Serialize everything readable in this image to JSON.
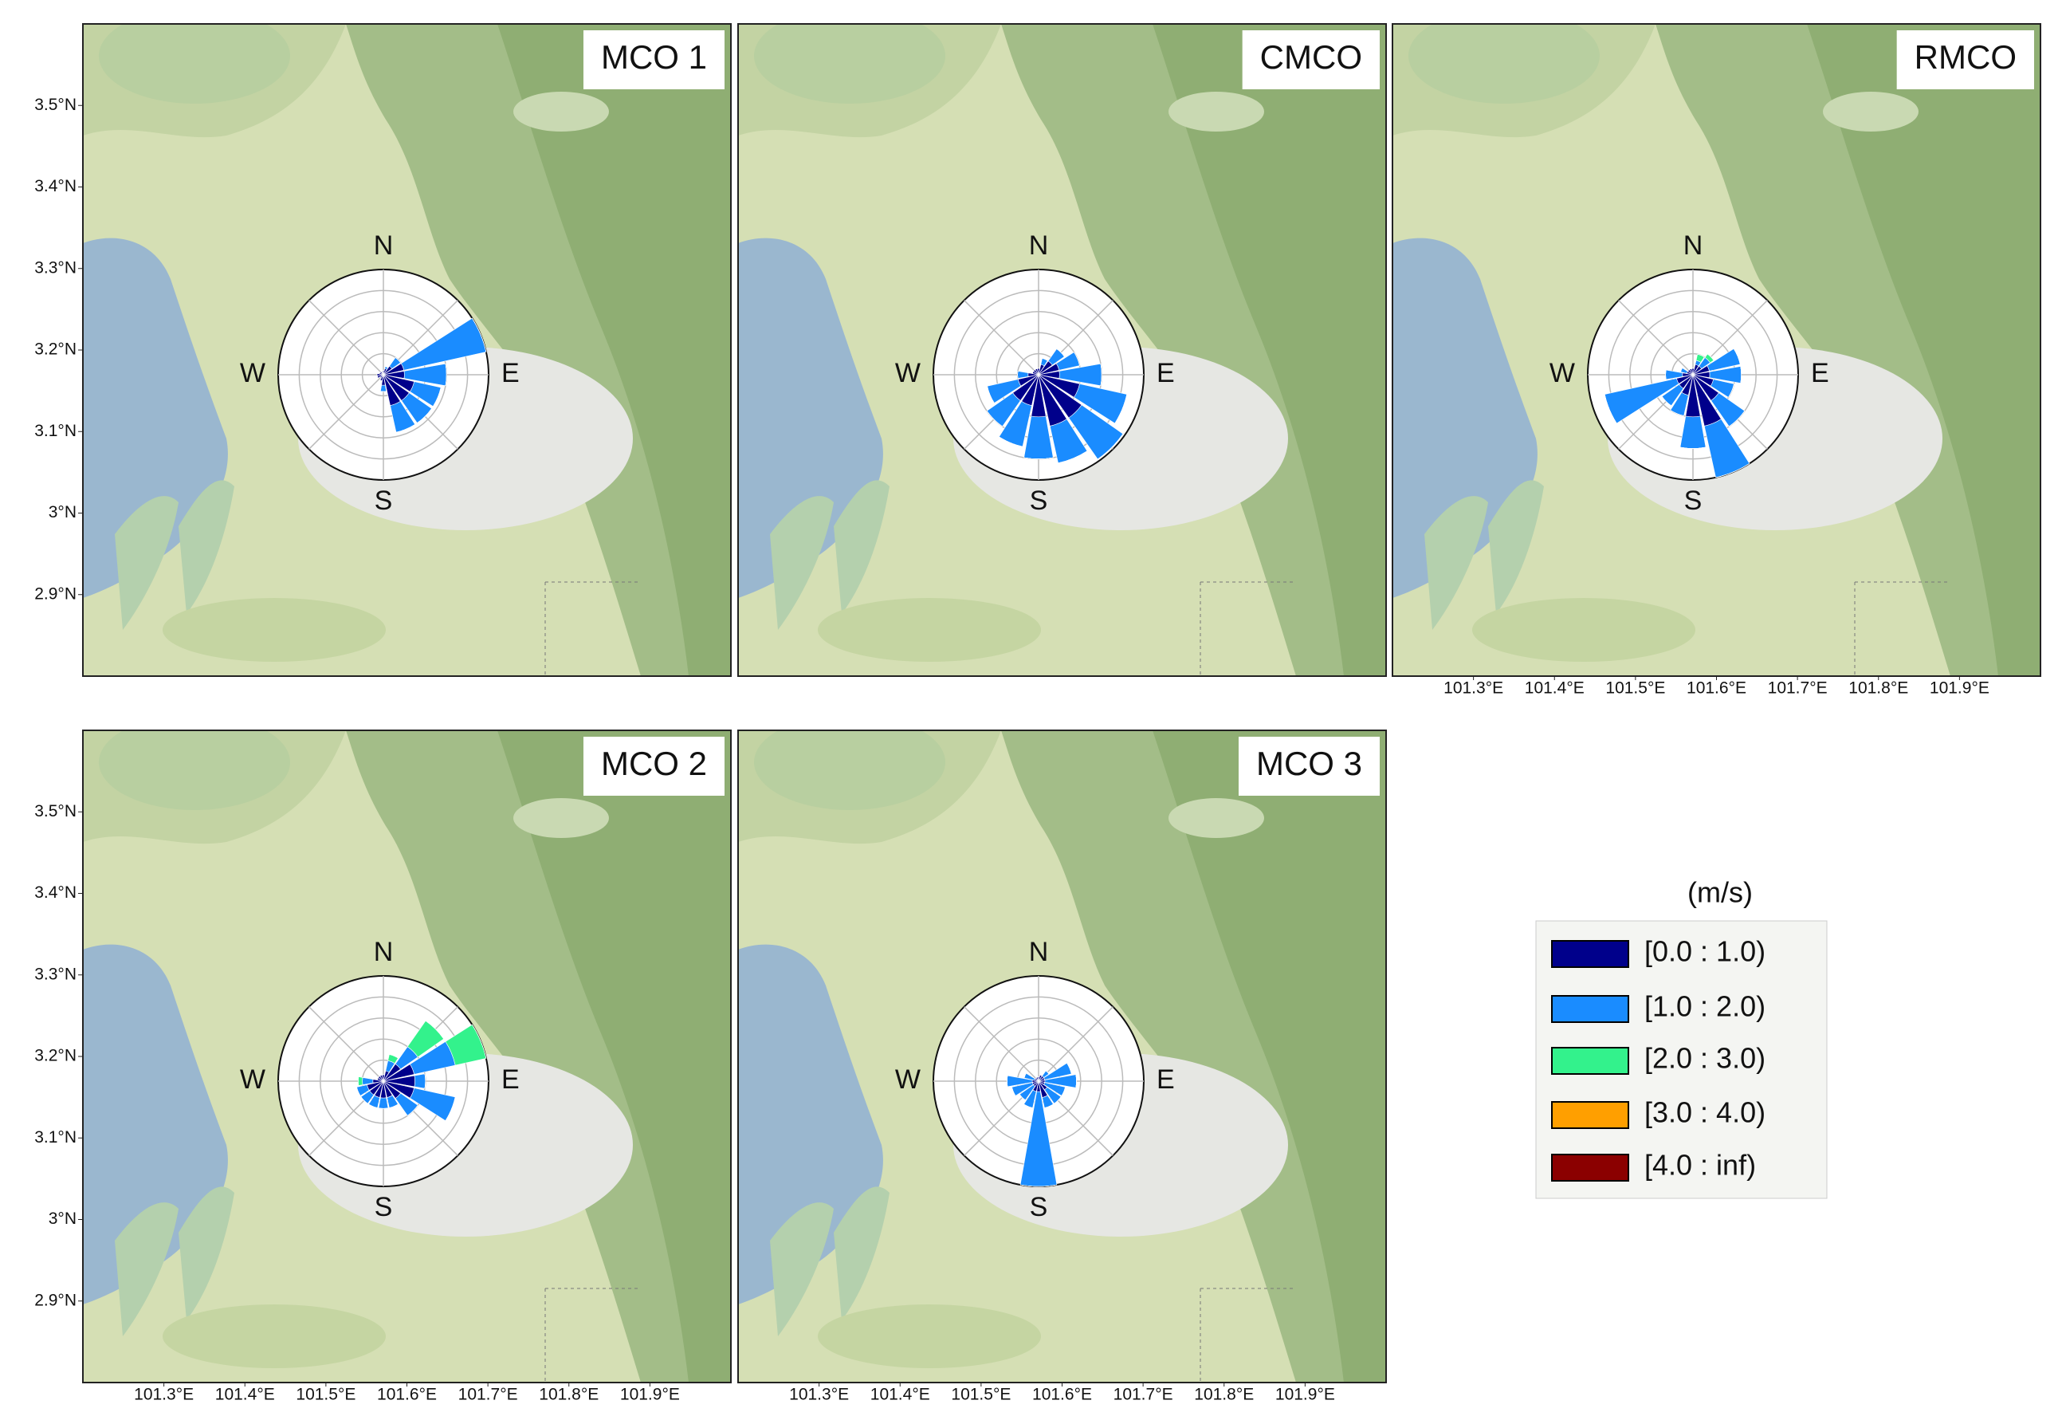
{
  "chart_data": [
    {
      "type": "windrose",
      "title": "MCO 1",
      "xlim": [
        101.2,
        102.0
      ],
      "ylim": [
        2.8,
        3.6
      ],
      "yticks": [
        {
          "value": 2.9,
          "label": "2.9°N"
        },
        {
          "value": 3.0,
          "label": "3°N"
        },
        {
          "value": 3.1,
          "label": "3.1°N"
        },
        {
          "value": 3.2,
          "label": "3.2°N"
        },
        {
          "value": 3.3,
          "label": "3.3°N"
        },
        {
          "value": 3.4,
          "label": "3.4°N"
        },
        {
          "value": 3.5,
          "label": "3.5°N"
        }
      ],
      "compass": [
        "N",
        "E",
        "S",
        "W"
      ],
      "directions": [
        0,
        22.5,
        45,
        67.5,
        90,
        112.5,
        135,
        157.5,
        180,
        202.5,
        225,
        247.5,
        270,
        292.5,
        315,
        337.5
      ],
      "rlim": [
        0,
        5
      ],
      "rticks": [
        1,
        2,
        3,
        4
      ],
      "series": [
        {
          "values": [
            0.2,
            0.3,
            0.5,
            1.0,
            1.0,
            1.5,
            1.5,
            1.5,
            0.5,
            0.3,
            0.2,
            0.3,
            0.3,
            0.2,
            0.2,
            0.1
          ]
        },
        {
          "values": [
            0,
            0.1,
            0.5,
            4.0,
            2.0,
            1.3,
            1.3,
            1.3,
            0.3,
            0,
            0,
            0,
            0,
            0,
            0,
            0
          ]
        },
        {
          "values": [
            0,
            0,
            0,
            0,
            0,
            0,
            0,
            0,
            0,
            0,
            0,
            0,
            0,
            0,
            0,
            0
          ]
        },
        {
          "values": [
            0,
            0,
            0,
            0,
            0,
            0,
            0,
            0,
            0,
            0,
            0,
            0,
            0,
            0,
            0,
            0
          ]
        },
        {
          "values": [
            0,
            0,
            0,
            0,
            0,
            0,
            0,
            0,
            0,
            0,
            0,
            0,
            0,
            0,
            0,
            0
          ]
        }
      ]
    },
    {
      "type": "windrose",
      "title": "CMCO",
      "xlim": [
        101.2,
        102.0
      ],
      "ylim": [
        2.8,
        3.6
      ],
      "compass": [
        "N",
        "E",
        "S",
        "W"
      ],
      "directions": [
        0,
        22.5,
        45,
        67.5,
        90,
        112.5,
        135,
        157.5,
        180,
        202.5,
        225,
        247.5,
        270,
        292.5,
        315,
        337.5
      ],
      "rlim": [
        0,
        5
      ],
      "rticks": [
        1,
        2,
        3,
        4
      ],
      "series": [
        {
          "values": [
            0.3,
            0.5,
            0.8,
            1.0,
            1.0,
            2.0,
            2.5,
            2.5,
            2.0,
            1.5,
            1.5,
            1.0,
            0.5,
            0.3,
            0.3,
            0.3
          ]
        },
        {
          "values": [
            0,
            0.3,
            0.7,
            1.0,
            2.0,
            2.3,
            2.4,
            1.8,
            2.0,
            2.0,
            1.5,
            1.5,
            0.5,
            0,
            0,
            0
          ]
        },
        {
          "values": [
            0,
            0,
            0,
            0,
            0,
            0,
            0,
            0,
            0,
            0,
            0,
            0,
            0,
            0,
            0,
            0
          ]
        },
        {
          "values": [
            0,
            0,
            0,
            0,
            0,
            0,
            0,
            0,
            0,
            0,
            0,
            0,
            0,
            0,
            0,
            0
          ]
        },
        {
          "values": [
            0,
            0,
            0,
            0,
            0,
            0,
            0,
            0,
            0,
            0,
            0,
            0,
            0,
            0,
            0,
            0
          ]
        }
      ]
    },
    {
      "type": "windrose",
      "title": "RMCO",
      "xlim": [
        101.2,
        102.0
      ],
      "ylim": [
        2.8,
        3.6
      ],
      "xticks": [
        {
          "value": 101.3,
          "label": "101.3°E"
        },
        {
          "value": 101.4,
          "label": "101.4°E"
        },
        {
          "value": 101.5,
          "label": "101.5°E"
        },
        {
          "value": 101.6,
          "label": "101.6°E"
        },
        {
          "value": 101.7,
          "label": "101.7°E"
        },
        {
          "value": 101.8,
          "label": "101.8°E"
        },
        {
          "value": 101.9,
          "label": "101.9°E"
        }
      ],
      "compass": [
        "N",
        "E",
        "S",
        "W"
      ],
      "directions": [
        0,
        22.5,
        45,
        67.5,
        90,
        112.5,
        135,
        157.5,
        180,
        202.5,
        225,
        247.5,
        270,
        292.5,
        315,
        337.5
      ],
      "rlim": [
        0,
        5
      ],
      "rticks": [
        1,
        2,
        3,
        4
      ],
      "series": [
        {
          "values": [
            0.3,
            0.5,
            0.5,
            0.8,
            0.8,
            1.0,
            1.5,
            2.5,
            2.0,
            1.0,
            0.8,
            0.8,
            0.5,
            0.3,
            0.3,
            0.3
          ]
        },
        {
          "values": [
            0,
            0.2,
            0.5,
            1.5,
            1.5,
            1.0,
            1.5,
            2.5,
            1.5,
            1.0,
            1.0,
            3.5,
            0.8,
            0.3,
            0,
            0
          ]
        },
        {
          "values": [
            0,
            0.3,
            0.2,
            0,
            0,
            0,
            0,
            0,
            0,
            0,
            0,
            0,
            0,
            0,
            0,
            0
          ]
        },
        {
          "values": [
            0,
            0,
            0,
            0,
            0,
            0,
            0,
            0,
            0,
            0,
            0,
            0,
            0,
            0,
            0,
            0
          ]
        },
        {
          "values": [
            0,
            0,
            0,
            0,
            0,
            0,
            0,
            0,
            0,
            0,
            0,
            0,
            0,
            0,
            0,
            0
          ]
        }
      ]
    },
    {
      "type": "windrose",
      "title": "MCO 2",
      "xlim": [
        101.2,
        102.0
      ],
      "ylim": [
        2.8,
        3.6
      ],
      "xticks": [
        {
          "value": 101.3,
          "label": "101.3°E"
        },
        {
          "value": 101.4,
          "label": "101.4°E"
        },
        {
          "value": 101.5,
          "label": "101.5°E"
        },
        {
          "value": 101.6,
          "label": "101.6°E"
        },
        {
          "value": 101.7,
          "label": "101.7°E"
        },
        {
          "value": 101.8,
          "label": "101.8°E"
        },
        {
          "value": 101.9,
          "label": "101.9°E"
        }
      ],
      "yticks": [
        {
          "value": 2.9,
          "label": "2.9°N"
        },
        {
          "value": 3.0,
          "label": "3°N"
        },
        {
          "value": 3.1,
          "label": "3.1°N"
        },
        {
          "value": 3.2,
          "label": "3.2°N"
        },
        {
          "value": 3.3,
          "label": "3.3°N"
        },
        {
          "value": 3.4,
          "label": "3.4°N"
        },
        {
          "value": 3.5,
          "label": "3.5°N"
        }
      ],
      "compass": [
        "N",
        "E",
        "S",
        "W"
      ],
      "directions": [
        0,
        22.5,
        45,
        67.5,
        90,
        112.5,
        135,
        157.5,
        180,
        202.5,
        225,
        247.5,
        270,
        292.5,
        315,
        337.5
      ],
      "rlim": [
        0,
        5
      ],
      "rticks": [
        1,
        2,
        3,
        4
      ],
      "series": [
        {
          "values": [
            0.3,
            0.5,
            1.0,
            1.5,
            1.5,
            1.5,
            1.0,
            0.8,
            0.8,
            0.8,
            0.8,
            0.8,
            0.5,
            0.3,
            0.3,
            0.3
          ]
        },
        {
          "values": [
            0,
            0.5,
            1.0,
            2.0,
            0.5,
            2.0,
            1.0,
            0.5,
            0.5,
            0.5,
            0.5,
            0.5,
            0.5,
            0,
            0,
            0
          ]
        },
        {
          "values": [
            0,
            0.3,
            1.5,
            1.5,
            0,
            0,
            0,
            0,
            0,
            0,
            0,
            0,
            0.2,
            0,
            0,
            0
          ]
        },
        {
          "values": [
            0,
            0,
            0,
            0,
            0,
            0,
            0,
            0,
            0,
            0,
            0,
            0,
            0,
            0,
            0,
            0
          ]
        },
        {
          "values": [
            0,
            0,
            0,
            0,
            0,
            0,
            0,
            0,
            0,
            0,
            0,
            0,
            0,
            0,
            0,
            0
          ]
        }
      ]
    },
    {
      "type": "windrose",
      "title": "MCO 3",
      "xlim": [
        101.2,
        102.0
      ],
      "ylim": [
        2.8,
        3.6
      ],
      "xticks": [
        {
          "value": 101.3,
          "label": "101.3°E"
        },
        {
          "value": 101.4,
          "label": "101.4°E"
        },
        {
          "value": 101.5,
          "label": "101.5°E"
        },
        {
          "value": 101.6,
          "label": "101.6°E"
        },
        {
          "value": 101.7,
          "label": "101.7°E"
        },
        {
          "value": 101.8,
          "label": "101.8°E"
        },
        {
          "value": 101.9,
          "label": "101.9°E"
        }
      ],
      "compass": [
        "N",
        "E",
        "S",
        "W"
      ],
      "directions": [
        0,
        22.5,
        45,
        67.5,
        90,
        112.5,
        135,
        157.5,
        180,
        202.5,
        225,
        247.5,
        270,
        292.5,
        315,
        337.5
      ],
      "rlim": [
        0,
        5
      ],
      "rticks": [
        1,
        2,
        3,
        4
      ],
      "series": [
        {
          "values": [
            0.2,
            0.3,
            0.3,
            0.3,
            0.3,
            0.3,
            0.5,
            0.8,
            0.5,
            0.5,
            0.3,
            0.3,
            0.3,
            0.2,
            0.2,
            0.2
          ]
        },
        {
          "values": [
            0,
            0,
            0.3,
            1.3,
            1.5,
            1.0,
            0.8,
            0.5,
            4.5,
            0.8,
            0.8,
            1.0,
            1.2,
            0.5,
            0,
            0
          ]
        },
        {
          "values": [
            0,
            0,
            0,
            0,
            0,
            0,
            0,
            0,
            0,
            0,
            0,
            0,
            0,
            0,
            0,
            0
          ]
        },
        {
          "values": [
            0,
            0,
            0,
            0,
            0,
            0,
            0,
            0,
            0,
            0,
            0,
            0,
            0,
            0,
            0,
            0
          ]
        },
        {
          "values": [
            0,
            0,
            0,
            0,
            0,
            0,
            0,
            0,
            0,
            0,
            0,
            0,
            0,
            0,
            0,
            0
          ]
        }
      ]
    }
  ],
  "legend": {
    "title": "(m/s)",
    "entries": [
      {
        "name": "[0.0 : 1.0)",
        "color": "#00008b"
      },
      {
        "name": "[1.0 : 2.0)",
        "color": "#1a8cff"
      },
      {
        "name": "[2.0 : 3.0)",
        "color": "#33f28c"
      },
      {
        "name": "[3.0 : 4.0)",
        "color": "#ff9f00"
      },
      {
        "name": "[4.0 : inf)",
        "color": "#8b0000"
      }
    ]
  }
}
